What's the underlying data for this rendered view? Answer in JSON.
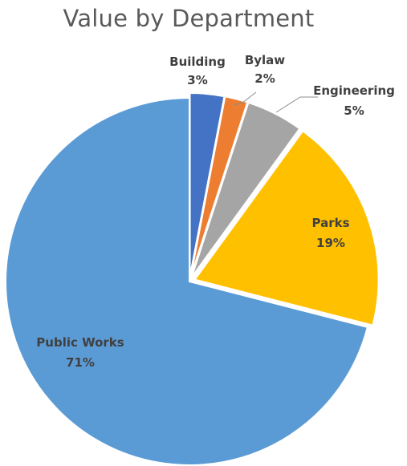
{
  "chart_data": {
    "type": "pie",
    "title": "Value by Department",
    "categories": [
      "Building",
      "Bylaw",
      "Engineering",
      "Parks",
      "Public Works"
    ],
    "values": [
      3,
      2,
      5,
      19,
      71
    ],
    "value_labels": [
      "3%",
      "2%",
      "5%",
      "19%",
      "71%"
    ],
    "colors": [
      "#4472C4",
      "#ED7D31",
      "#A5A5A5",
      "#FFC000",
      "#5B9BD5"
    ],
    "start": "top, clockwise",
    "exploded_slices": [
      "Building",
      "Bylaw",
      "Engineering",
      "Parks"
    ],
    "legend": "none (data labels)"
  }
}
